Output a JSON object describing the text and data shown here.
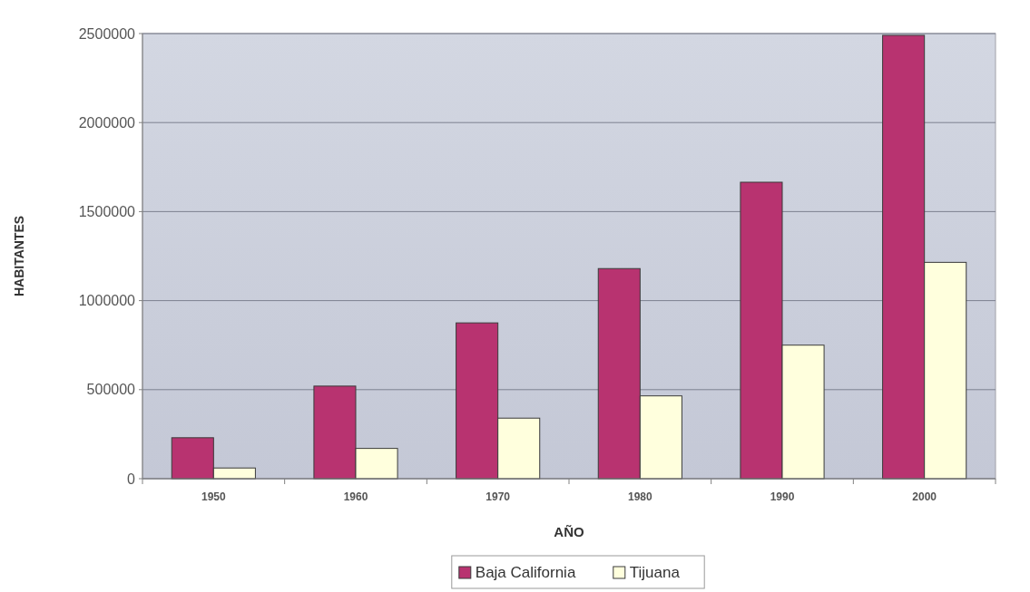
{
  "chart_data": {
    "type": "bar",
    "xlabel": "AÑO",
    "ylabel": "HABITANTES",
    "categories": [
      "1950",
      "1960",
      "1970",
      "1980",
      "1990",
      "2000"
    ],
    "series": [
      {
        "name": "Baja California",
        "color": "#b83370",
        "values": [
          230000,
          520000,
          875000,
          1180000,
          1665000,
          2490000
        ]
      },
      {
        "name": "Tijuana",
        "color": "#ffffdd",
        "values": [
          60000,
          170000,
          340000,
          465000,
          750000,
          1215000
        ]
      }
    ],
    "ylim": [
      0,
      2500000
    ],
    "yticks": [
      0,
      500000,
      1000000,
      1500000,
      2000000,
      2500000
    ],
    "grid": "y",
    "legend": "bottom"
  }
}
